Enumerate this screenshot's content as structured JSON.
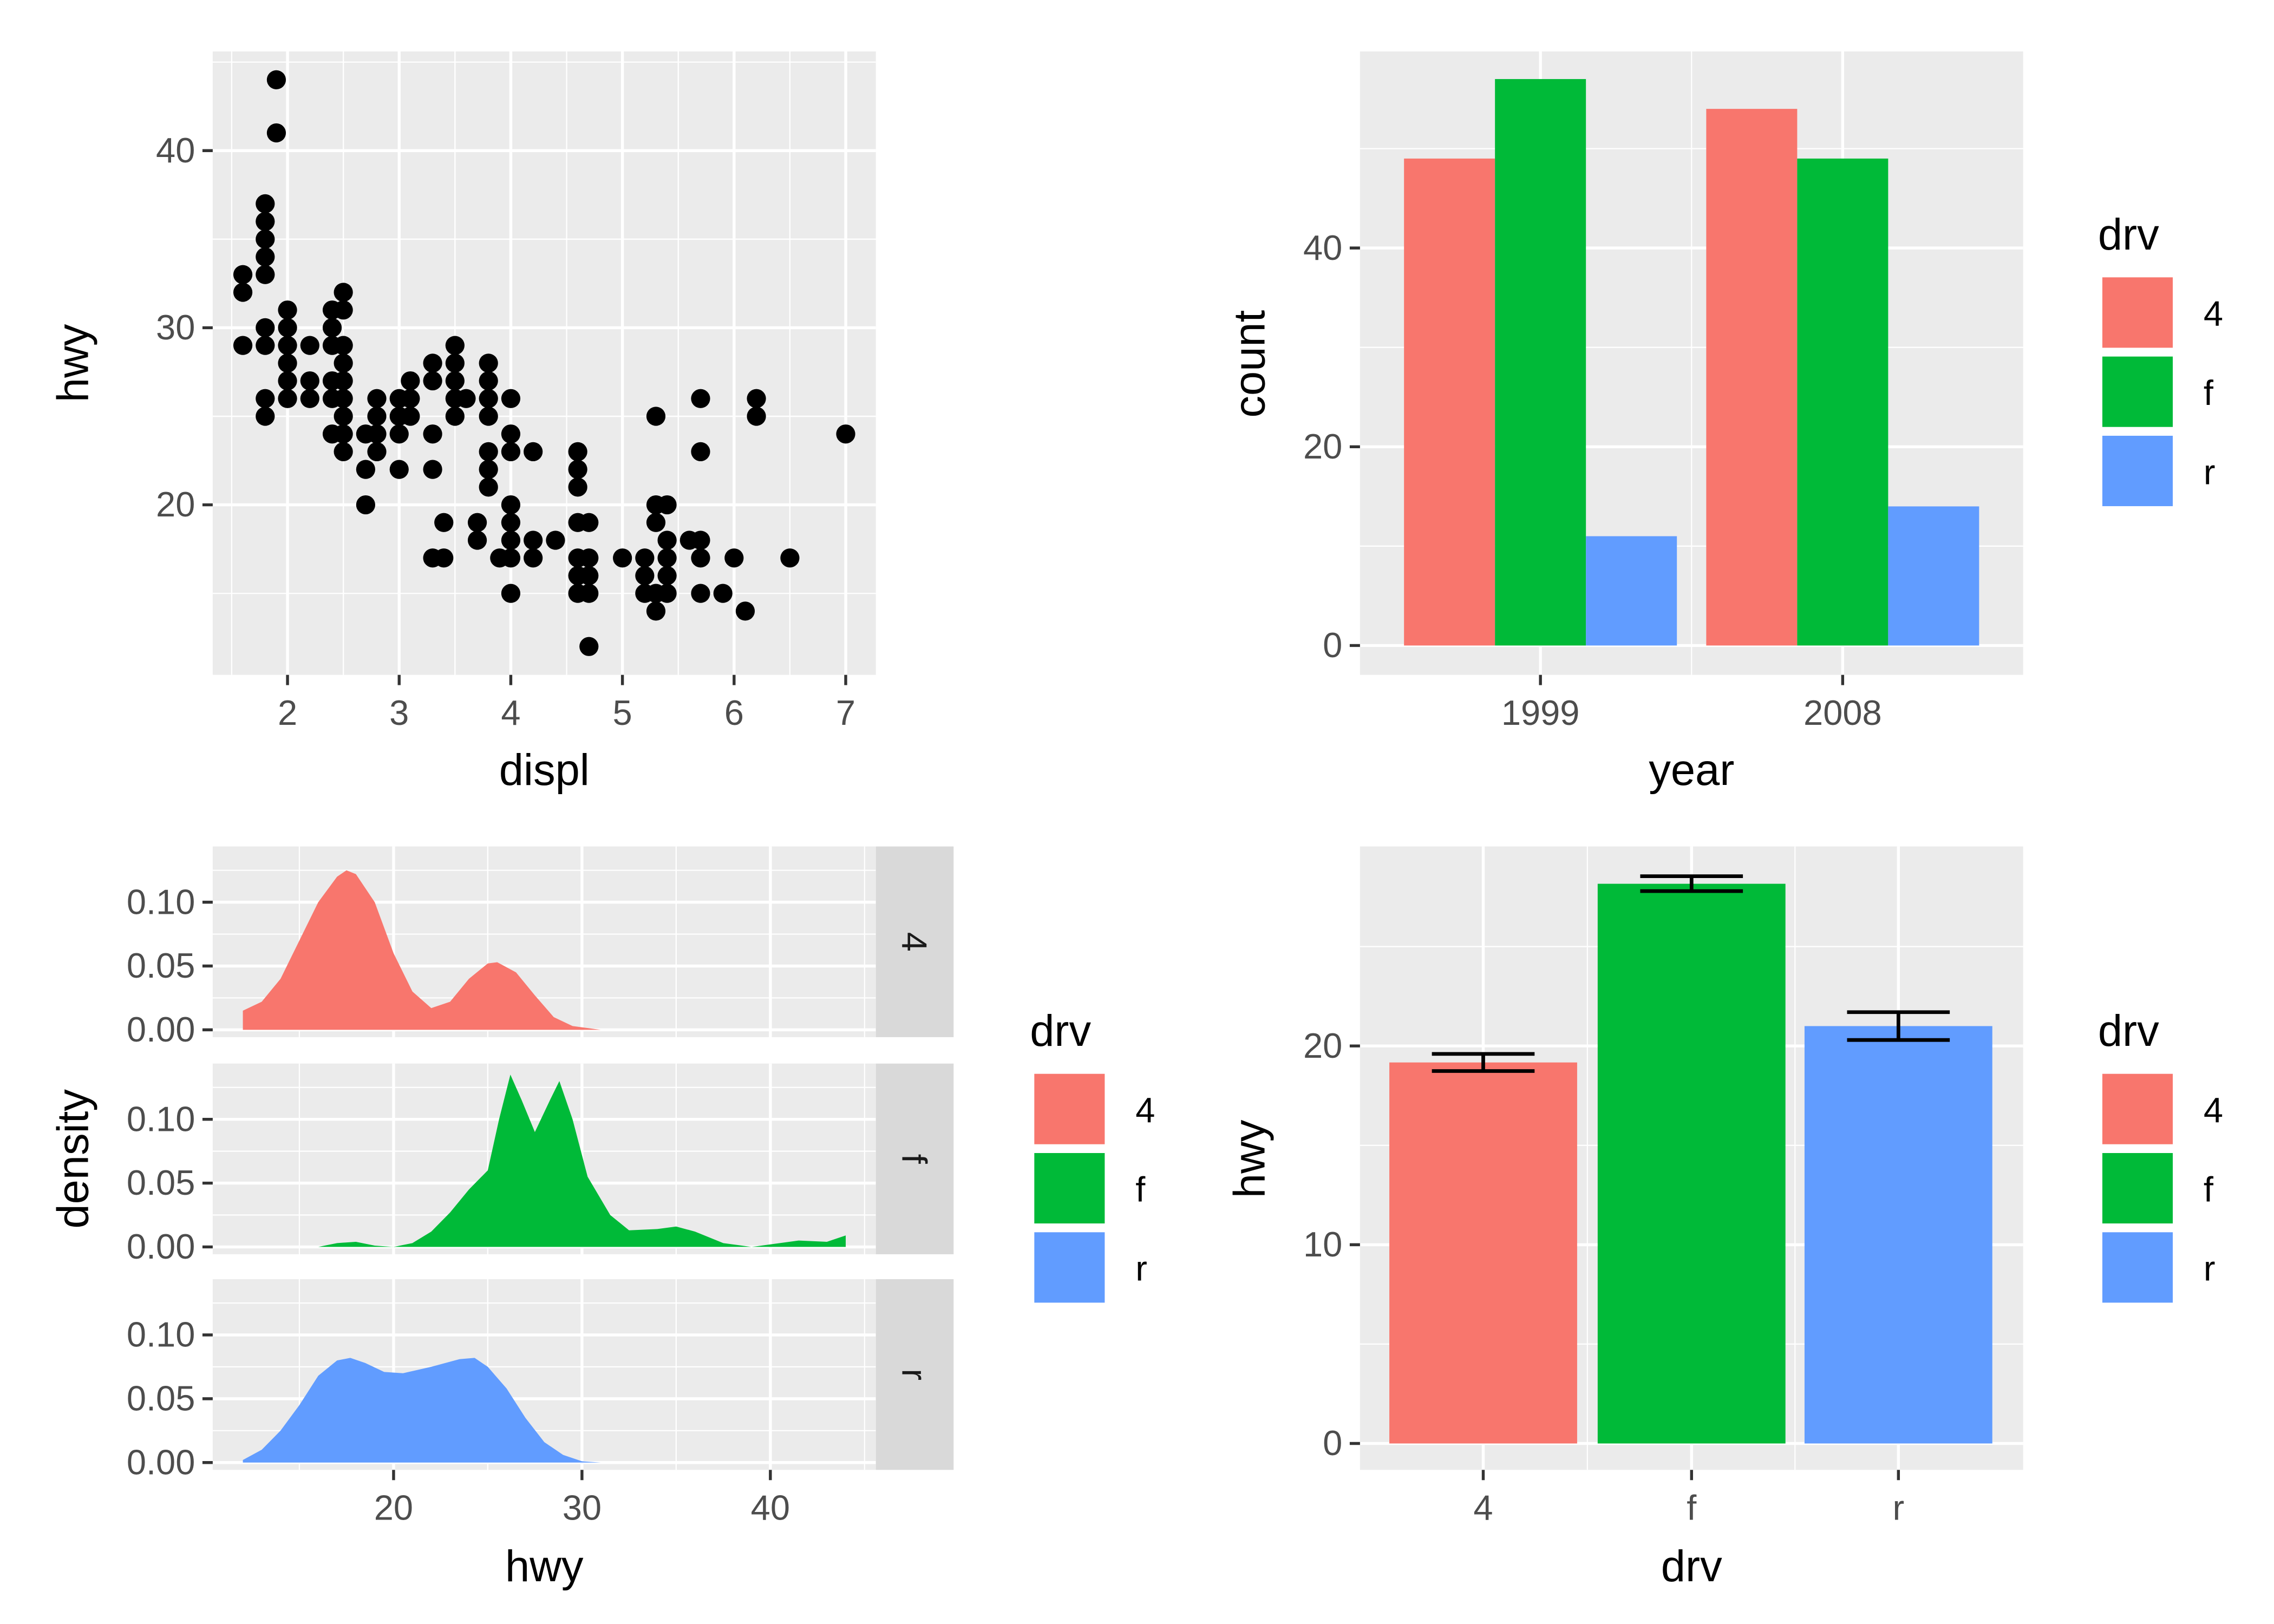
{
  "colors": {
    "4": "#F8766D",
    "f": "#00BA38",
    "r": "#619CFF",
    "panel": "#EBEBEB",
    "grid": "#FFFFFF",
    "strip": "#D9D9D9"
  },
  "chart_data": [
    {
      "type": "scatter",
      "xlabel": "displ",
      "ylabel": "hwy",
      "xlim": [
        1.33,
        7.27
      ],
      "ylim": [
        10.4,
        45.6
      ],
      "xticks": [
        "2",
        "3",
        "4",
        "5",
        "6",
        "7"
      ],
      "yticks": [
        "20",
        "30",
        "40"
      ],
      "points": [
        [
          1.6,
          33
        ],
        [
          1.6,
          32
        ],
        [
          1.6,
          29
        ],
        [
          1.8,
          37
        ],
        [
          1.8,
          36
        ],
        [
          1.8,
          35
        ],
        [
          1.8,
          34
        ],
        [
          1.8,
          33
        ],
        [
          1.8,
          30
        ],
        [
          1.8,
          29
        ],
        [
          1.8,
          26
        ],
        [
          1.8,
          25
        ],
        [
          1.9,
          44
        ],
        [
          1.9,
          41
        ],
        [
          2,
          31
        ],
        [
          2,
          30
        ],
        [
          2,
          29
        ],
        [
          2,
          28
        ],
        [
          2,
          27
        ],
        [
          2,
          26
        ],
        [
          2.2,
          29
        ],
        [
          2.2,
          27
        ],
        [
          2.2,
          26
        ],
        [
          2.4,
          31
        ],
        [
          2.4,
          30
        ],
        [
          2.4,
          29
        ],
        [
          2.4,
          27
        ],
        [
          2.4,
          26
        ],
        [
          2.4,
          24
        ],
        [
          2.5,
          32
        ],
        [
          2.5,
          31
        ],
        [
          2.5,
          29
        ],
        [
          2.5,
          28
        ],
        [
          2.5,
          27
        ],
        [
          2.5,
          26
        ],
        [
          2.5,
          25
        ],
        [
          2.5,
          24
        ],
        [
          2.5,
          23
        ],
        [
          2.7,
          24
        ],
        [
          2.7,
          22
        ],
        [
          2.7,
          20
        ],
        [
          2.8,
          26
        ],
        [
          2.8,
          25
        ],
        [
          2.8,
          24
        ],
        [
          2.8,
          23
        ],
        [
          3,
          26
        ],
        [
          3,
          25
        ],
        [
          3,
          24
        ],
        [
          3,
          22
        ],
        [
          3.1,
          27
        ],
        [
          3.1,
          26
        ],
        [
          3.1,
          25
        ],
        [
          3.3,
          28
        ],
        [
          3.3,
          27
        ],
        [
          3.3,
          24
        ],
        [
          3.3,
          22
        ],
        [
          3.3,
          17
        ],
        [
          3.4,
          19
        ],
        [
          3.4,
          17
        ],
        [
          3.5,
          29
        ],
        [
          3.5,
          28
        ],
        [
          3.5,
          27
        ],
        [
          3.5,
          26
        ],
        [
          3.5,
          25
        ],
        [
          3.6,
          26
        ],
        [
          3.7,
          19
        ],
        [
          3.7,
          18
        ],
        [
          3.8,
          28
        ],
        [
          3.8,
          27
        ],
        [
          3.8,
          26
        ],
        [
          3.8,
          25
        ],
        [
          3.8,
          23
        ],
        [
          3.8,
          22
        ],
        [
          3.8,
          21
        ],
        [
          3.9,
          17
        ],
        [
          4,
          26
        ],
        [
          4,
          24
        ],
        [
          4,
          23
        ],
        [
          4,
          20
        ],
        [
          4,
          19
        ],
        [
          4,
          18
        ],
        [
          4,
          17
        ],
        [
          4,
          15
        ],
        [
          4.2,
          23
        ],
        [
          4.2,
          18
        ],
        [
          4.2,
          17
        ],
        [
          4.4,
          18
        ],
        [
          4.6,
          23
        ],
        [
          4.6,
          22
        ],
        [
          4.6,
          21
        ],
        [
          4.6,
          19
        ],
        [
          4.6,
          17
        ],
        [
          4.6,
          16
        ],
        [
          4.6,
          15
        ],
        [
          4.7,
          19
        ],
        [
          4.7,
          17
        ],
        [
          4.7,
          16
        ],
        [
          4.7,
          15
        ],
        [
          4.7,
          12
        ],
        [
          5,
          17
        ],
        [
          5.2,
          17
        ],
        [
          5.2,
          16
        ],
        [
          5.2,
          15
        ],
        [
          5.3,
          25
        ],
        [
          5.3,
          20
        ],
        [
          5.3,
          19
        ],
        [
          5.3,
          15
        ],
        [
          5.3,
          14
        ],
        [
          5.4,
          20
        ],
        [
          5.4,
          18
        ],
        [
          5.4,
          17
        ],
        [
          5.4,
          16
        ],
        [
          5.4,
          15
        ],
        [
          5.6,
          18
        ],
        [
          5.7,
          26
        ],
        [
          5.7,
          23
        ],
        [
          5.7,
          18
        ],
        [
          5.7,
          17
        ],
        [
          5.7,
          15
        ],
        [
          5.9,
          15
        ],
        [
          6,
          17
        ],
        [
          6.1,
          14
        ],
        [
          6.2,
          26
        ],
        [
          6.2,
          25
        ],
        [
          6.5,
          17
        ],
        [
          7,
          24
        ]
      ]
    },
    {
      "type": "bar",
      "xlabel": "year",
      "ylabel": "count",
      "categories": [
        "1999",
        "2008"
      ],
      "ylim": [
        0,
        59.85
      ],
      "yticks": [
        "0",
        "20",
        "40"
      ],
      "legend": {
        "title": "drv",
        "position": "right"
      },
      "series": [
        {
          "name": "4",
          "values": [
            49,
            54
          ]
        },
        {
          "name": "f",
          "values": [
            57,
            49
          ]
        },
        {
          "name": "r",
          "values": [
            11,
            14
          ]
        }
      ]
    },
    {
      "type": "area",
      "xlabel": "hwy",
      "ylabel": "density",
      "xlim": [
        10.4,
        45.6
      ],
      "ylim": [
        0,
        0.1425
      ],
      "xticks": [
        "20",
        "30",
        "40"
      ],
      "yticks": [
        "0.00",
        "0.05",
        "0.10"
      ],
      "legend": {
        "title": "drv",
        "position": "right"
      },
      "facets": [
        {
          "name": "4",
          "points": [
            [
              12,
              0.015
            ],
            [
              13,
              0.022
            ],
            [
              14,
              0.04
            ],
            [
              15,
              0.07
            ],
            [
              16,
              0.1
            ],
            [
              17,
              0.12
            ],
            [
              17.5,
              0.125
            ],
            [
              18,
              0.122
            ],
            [
              19,
              0.1
            ],
            [
              20,
              0.06
            ],
            [
              21,
              0.03
            ],
            [
              22,
              0.017
            ],
            [
              23,
              0.022
            ],
            [
              24,
              0.04
            ],
            [
              25,
              0.052
            ],
            [
              25.5,
              0.053
            ],
            [
              26.5,
              0.045
            ],
            [
              27.5,
              0.027
            ],
            [
              28.5,
              0.01
            ],
            [
              29.5,
              0.003
            ],
            [
              31,
              0
            ]
          ]
        },
        {
          "name": "f",
          "points": [
            [
              16,
              0
            ],
            [
              17,
              0.003
            ],
            [
              18,
              0.004
            ],
            [
              19,
              0.001
            ],
            [
              20,
              0
            ],
            [
              21,
              0.003
            ],
            [
              22,
              0.012
            ],
            [
              23,
              0.027
            ],
            [
              24,
              0.045
            ],
            [
              25,
              0.06
            ],
            [
              25.6,
              0.1
            ],
            [
              26.2,
              0.135
            ],
            [
              26.8,
              0.115
            ],
            [
              27.5,
              0.09
            ],
            [
              28.3,
              0.115
            ],
            [
              28.8,
              0.13
            ],
            [
              29.5,
              0.1
            ],
            [
              30.3,
              0.055
            ],
            [
              31.5,
              0.025
            ],
            [
              32.5,
              0.013
            ],
            [
              34,
              0.014
            ],
            [
              35,
              0.016
            ],
            [
              36,
              0.012
            ],
            [
              37.5,
              0.003
            ],
            [
              39,
              0
            ],
            [
              40.5,
              0.003
            ],
            [
              41.5,
              0.005
            ],
            [
              43,
              0.004
            ],
            [
              44,
              0.009
            ]
          ]
        },
        {
          "name": "r",
          "points": [
            [
              12,
              0.002
            ],
            [
              13,
              0.01
            ],
            [
              14,
              0.025
            ],
            [
              15,
              0.045
            ],
            [
              16,
              0.068
            ],
            [
              17,
              0.08
            ],
            [
              17.7,
              0.082
            ],
            [
              18.5,
              0.078
            ],
            [
              19.5,
              0.071
            ],
            [
              20.5,
              0.07
            ],
            [
              22,
              0.075
            ],
            [
              23.5,
              0.081
            ],
            [
              24.3,
              0.082
            ],
            [
              25,
              0.075
            ],
            [
              26,
              0.058
            ],
            [
              27,
              0.035
            ],
            [
              28,
              0.016
            ],
            [
              29,
              0.006
            ],
            [
              30,
              0.001
            ],
            [
              31,
              0
            ]
          ]
        }
      ]
    },
    {
      "type": "bar",
      "xlabel": "drv",
      "ylabel": "hwy",
      "categories": [
        "4",
        "f",
        "r"
      ],
      "values": [
        19.17,
        28.16,
        21.0
      ],
      "errors": [
        [
          18.74,
          19.6
        ],
        [
          27.79,
          28.54
        ],
        [
          20.3,
          21.7
        ]
      ],
      "ylim": [
        0,
        29.6
      ],
      "yticks": [
        "0",
        "10",
        "20"
      ],
      "legend": {
        "title": "drv",
        "position": "right",
        "keys": [
          "4",
          "f",
          "r"
        ]
      }
    }
  ]
}
